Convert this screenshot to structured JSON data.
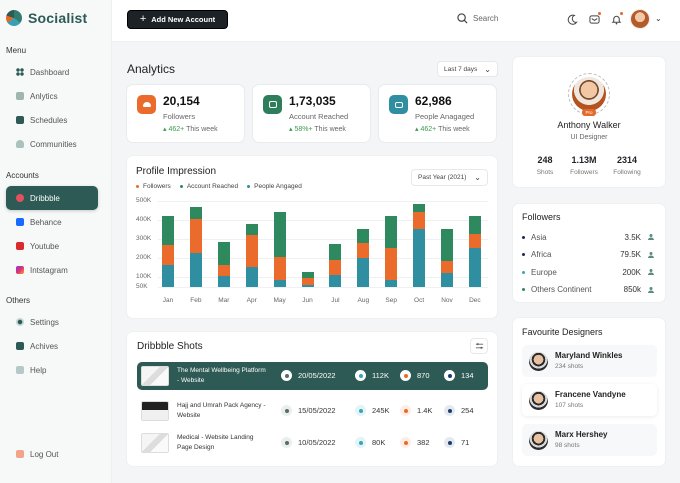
{
  "app": {
    "name": "Socialist"
  },
  "sidebar": {
    "menu_label": "Menu",
    "menu": [
      {
        "label": "Dashboard",
        "icon": "grid-icon"
      },
      {
        "label": "Anlytics",
        "icon": "analytics-icon"
      },
      {
        "label": "Schedules",
        "icon": "calendar-icon"
      },
      {
        "label": "Communities",
        "icon": "community-icon"
      }
    ],
    "accounts_label": "Accounts",
    "accounts": [
      {
        "label": "Dribbble",
        "icon": "dribbble-icon",
        "color": "#ea4c89",
        "active": true
      },
      {
        "label": "Behance",
        "icon": "behance-icon",
        "color": "#1769ff"
      },
      {
        "label": "Youtube",
        "icon": "youtube-icon",
        "color": "#e02020"
      },
      {
        "label": "Intstagram",
        "icon": "instagram-icon",
        "color": "#c13584"
      }
    ],
    "others_label": "Others",
    "others": [
      {
        "label": "Settings",
        "icon": "gear-icon"
      },
      {
        "label": "Achives",
        "icon": "archive-icon"
      },
      {
        "label": "Help",
        "icon": "help-icon"
      }
    ],
    "logout": "Log Out"
  },
  "topbar": {
    "add_button": "Add New Account",
    "search_placeholder": "Search"
  },
  "analytics": {
    "title": "Analytics",
    "range": "Last 7 days",
    "stats": [
      {
        "value": "20,154",
        "label": "Followers",
        "trend": "462+",
        "trend_suffix": "This week",
        "color": "#ea6b2c"
      },
      {
        "value": "1,73,035",
        "label": "Account Reached",
        "trend": "58%+",
        "trend_suffix": "This week",
        "color": "#2e7d5b"
      },
      {
        "value": "62,986",
        "label": "People Anagaged",
        "trend": "462+",
        "trend_suffix": "This week",
        "color": "#2f8ea0"
      }
    ]
  },
  "chart_data": {
    "type": "bar",
    "stacked": true,
    "title": "Profile Impression",
    "range_selector": "Past Year (2021)",
    "categories": [
      "Jan",
      "Feb",
      "Mar",
      "Apr",
      "May",
      "Jun",
      "Jul",
      "Aug",
      "Sep",
      "Oct",
      "Nov",
      "Dec"
    ],
    "series": [
      {
        "name": "People Angaged",
        "color": "#2f8ea0",
        "values": [
          130,
          200,
          70,
          120,
          40,
          20,
          75,
          175,
          40,
          340,
          85,
          230
        ]
      },
      {
        "name": "Followers",
        "color": "#ea6b2c",
        "values": [
          120,
          200,
          70,
          195,
          135,
          55,
          100,
          95,
          190,
          95,
          75,
          85
        ]
      },
      {
        "name": "Account Reached",
        "color": "#2e8a5e",
        "values": [
          170,
          70,
          145,
          65,
          265,
          55,
          100,
          85,
          190,
          50,
          195,
          105
        ]
      }
    ],
    "legend": [
      "Followers",
      "Account Reached",
      "People Angaged"
    ],
    "yticks": [
      "500K",
      "400K",
      "300K",
      "200K",
      "100K",
      "50K"
    ],
    "ylabel": "",
    "xlabel": "",
    "ylim": [
      0,
      500
    ],
    "units": "K",
    "grid": true,
    "legend_position": "top-left"
  },
  "shots": {
    "title": "Dribbble Shots",
    "rows": [
      {
        "title": "The Mental Wellbeing Platform - Website",
        "date": "20/05/2022",
        "views": "112K",
        "likes": "870",
        "comments": "134",
        "active": true
      },
      {
        "title": "Hajj and Umrah Pack Agency - Website",
        "date": "15/05/2022",
        "views": "245K",
        "likes": "1.4K",
        "comments": "254"
      },
      {
        "title": "Medical - Website Landing Page Design",
        "date": "10/05/2022",
        "views": "80K",
        "likes": "382",
        "comments": "71"
      }
    ]
  },
  "profile": {
    "name": "Anthony Walker",
    "role": "UI Designer",
    "badge": "Pro",
    "stats": [
      {
        "value": "248",
        "label": "Shots"
      },
      {
        "value": "1.13M",
        "label": "Followers"
      },
      {
        "value": "2314",
        "label": "Following"
      }
    ]
  },
  "followers": {
    "title": "Followers",
    "rows": [
      {
        "region": "Asia",
        "value": "3.5K",
        "color": "#1d2a5c"
      },
      {
        "region": "Africa",
        "value": "79.5K",
        "color": "#1d2a5c"
      },
      {
        "region": "Europe",
        "value": "200K",
        "color": "#3aa5b8"
      },
      {
        "region": "Others Continent",
        "value": "850k",
        "color": "#2e8a5e"
      }
    ]
  },
  "designers": {
    "title": "Favourite Designers",
    "items": [
      {
        "name": "Maryland Winkles",
        "shots": "234 shots"
      },
      {
        "name": "Francene Vandyne",
        "shots": "107 shots"
      },
      {
        "name": "Marx Hershey",
        "shots": "98 shots"
      }
    ]
  }
}
